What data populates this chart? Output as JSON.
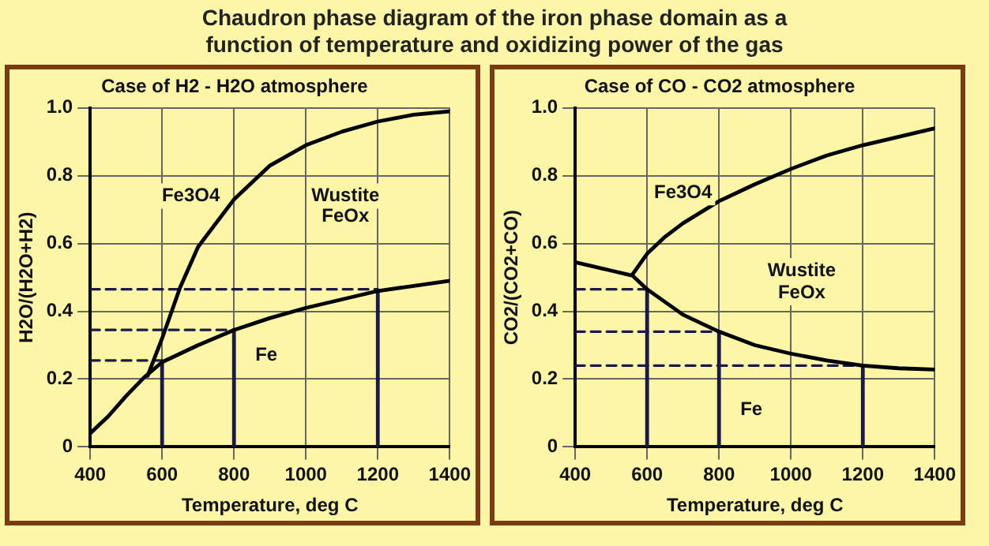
{
  "chart_data": [
    {
      "type": "line",
      "title": "Chaudron phase diagram of the iron phase domain as a function of temperature and oxidizing power of the gas",
      "subtitle": "Case of H2 - H2O atmosphere",
      "xlabel": "Temperature, deg C",
      "ylabel": "H2O/(H2O+H2)",
      "xlim": [
        400,
        1400
      ],
      "xticks": [
        400,
        600,
        800,
        1000,
        1200,
        1400
      ],
      "ylim": [
        0,
        1
      ],
      "yticks": [
        0,
        0.2,
        0.4,
        0.6,
        0.8,
        {
          "value": 1,
          "label": "1.0"
        }
      ],
      "grid": true,
      "legend": false,
      "marker": "none",
      "series": [
        {
          "color": "#000000",
          "x": [
            400,
            450,
            500,
            550,
            600,
            700,
            800,
            900,
            1000,
            1100,
            1200,
            1300,
            1400
          ],
          "values": [
            0.04,
            0.09,
            0.15,
            0.205,
            0.25,
            0.3,
            0.345,
            0.38,
            0.41,
            0.435,
            0.46,
            0.475,
            0.49
          ]
        },
        {
          "color": "#000000",
          "x": [
            560,
            600,
            650,
            700,
            800,
            900,
            1000,
            1100,
            1200,
            1300,
            1400
          ],
          "values": [
            0.21,
            0.32,
            0.47,
            0.59,
            0.73,
            0.83,
            0.89,
            0.93,
            0.96,
            0.98,
            0.99
          ]
        },
        {
          "color": "#1a1a4a",
          "line_style": "dashed",
          "x": [
            400,
            600
          ],
          "values": [
            0.255,
            0.255
          ]
        },
        {
          "color": "#1a1a4a",
          "line_style": "dashed",
          "x": [
            400,
            800
          ],
          "values": [
            0.345,
            0.345
          ]
        },
        {
          "color": "#1a1a4a",
          "line_style": "dashed",
          "x": [
            400,
            1200
          ],
          "values": [
            0.465,
            0.465
          ]
        },
        {
          "color": "#1a1a4a",
          "x": [
            600,
            600
          ],
          "values": [
            0.25,
            0
          ]
        },
        {
          "color": "#1a1a4a",
          "x": [
            800,
            800
          ],
          "values": [
            0.345,
            0
          ]
        },
        {
          "color": "#1a1a4a",
          "x": [
            1200,
            1200
          ],
          "values": [
            0.46,
            0
          ]
        }
      ],
      "annotations": [
        "Fe3O4",
        "Wustite",
        "FeOx",
        "Fe"
      ]
    },
    {
      "type": "line",
      "subtitle": "Case of CO - CO2 atmosphere",
      "xlabel": "Temperature, deg C",
      "ylabel": "CO2/(CO2+CO)",
      "xlim": [
        400,
        1400
      ],
      "xticks": [
        400,
        600,
        800,
        1000,
        1200,
        1400
      ],
      "ylim": [
        0,
        1
      ],
      "yticks": [
        0,
        0.2,
        0.4,
        0.6,
        0.8,
        {
          "value": 1,
          "label": "1.0"
        }
      ],
      "grid": true,
      "legend": false,
      "marker": "none",
      "series": [
        {
          "color": "#000000",
          "x": [
            400,
            500,
            560,
            600,
            700,
            800,
            900,
            1000,
            1100,
            1200,
            1300,
            1400
          ],
          "values": [
            0.545,
            0.52,
            0.505,
            0.465,
            0.39,
            0.34,
            0.3,
            0.275,
            0.255,
            0.24,
            0.232,
            0.228
          ]
        },
        {
          "color": "#000000",
          "x": [
            560,
            600,
            650,
            700,
            800,
            900,
            1000,
            1100,
            1200,
            1300,
            1400
          ],
          "values": [
            0.51,
            0.57,
            0.62,
            0.66,
            0.725,
            0.775,
            0.82,
            0.86,
            0.89,
            0.915,
            0.94
          ]
        },
        {
          "color": "#1a1a4a",
          "line_style": "dashed",
          "x": [
            400,
            600
          ],
          "values": [
            0.465,
            0.465
          ]
        },
        {
          "color": "#1a1a4a",
          "line_style": "dashed",
          "x": [
            400,
            800
          ],
          "values": [
            0.34,
            0.34
          ]
        },
        {
          "color": "#1a1a4a",
          "line_style": "dashed",
          "x": [
            400,
            1200
          ],
          "values": [
            0.24,
            0.24
          ]
        },
        {
          "color": "#1a1a4a",
          "x": [
            600,
            600
          ],
          "values": [
            0.465,
            0
          ]
        },
        {
          "color": "#1a1a4a",
          "x": [
            800,
            800
          ],
          "values": [
            0.34,
            0
          ]
        },
        {
          "color": "#1a1a4a",
          "x": [
            1200,
            1200
          ],
          "values": [
            0.24,
            0
          ]
        }
      ],
      "annotations": [
        "Fe3O4",
        "Wustite",
        "FeOx",
        "Fe"
      ]
    }
  ]
}
